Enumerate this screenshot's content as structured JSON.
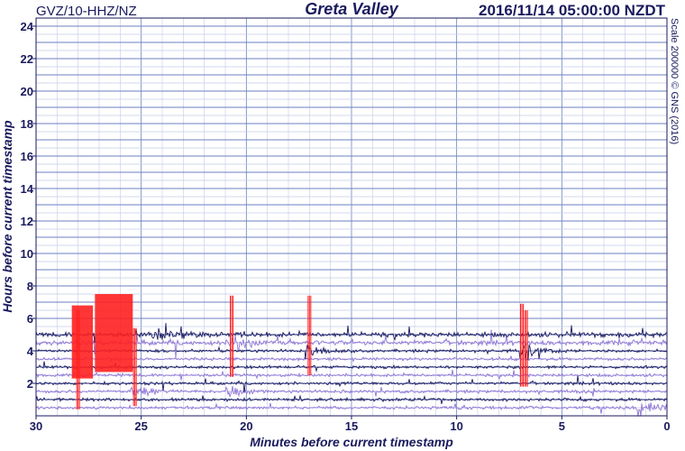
{
  "header": {
    "station": "GVZ/10-HHZ/NZ",
    "site": "Greta Valley",
    "timestamp": "2016/11/14 05:00:00 NZDT"
  },
  "side_note": "Scale 200000 © GNS (2016)",
  "chart_data": {
    "type": "seismic-drum",
    "xlabel": "Minutes before current timestamp",
    "ylabel": "Hours before current timestamp",
    "x_ticks": [
      "30",
      "25",
      "20",
      "15",
      "10",
      "5",
      "0"
    ],
    "x_tick_values": [
      30,
      25,
      20,
      15,
      10,
      5,
      0
    ],
    "y_ticks": [
      "2",
      "4",
      "6",
      "8",
      "10",
      "12",
      "14",
      "16",
      "18",
      "20",
      "22",
      "24"
    ],
    "y_tick_values": [
      2,
      4,
      6,
      8,
      10,
      12,
      14,
      16,
      18,
      20,
      22,
      24
    ],
    "xlim": [
      30,
      0
    ],
    "ylim": [
      0,
      24.5
    ],
    "trace_interval_hours": 0.5,
    "active_hours": 5,
    "trace_colors": [
      "#1a1a5e",
      "#8f74d6"
    ],
    "grid_major_color": "#6b7fc0",
    "grid_minor_color": "#c3cbe6",
    "clip_color": "#ff2020",
    "clip_blocks": [
      {
        "x_start": 27.2,
        "x_end": 25.4,
        "y_bottom": 2.7,
        "y_top": 7.5
      },
      {
        "x_start": 28.3,
        "x_end": 27.3,
        "y_bottom": 2.3,
        "y_top": 6.8
      }
    ],
    "spike_events": [
      {
        "x": 28.0,
        "y_bottom": 0.4,
        "y_top": 6.5
      },
      {
        "x": 25.3,
        "y_bottom": 0.6,
        "y_top": 5.4
      },
      {
        "x": 20.7,
        "y_bottom": 2.4,
        "y_top": 7.4
      },
      {
        "x": 17.0,
        "y_bottom": 2.5,
        "y_top": 7.4
      },
      {
        "x": 6.9,
        "y_bottom": 1.8,
        "y_top": 6.9
      },
      {
        "x": 6.7,
        "y_bottom": 1.8,
        "y_top": 6.5
      }
    ],
    "burst_events": [
      {
        "x": 24.5,
        "hour": 5.0,
        "strength": 1.0
      },
      {
        "x": 20.8,
        "hour": 4.5,
        "strength": 0.8
      },
      {
        "x": 17.2,
        "hour": 4.0,
        "strength": 0.6
      },
      {
        "x": 7.0,
        "hour": 4.0,
        "strength": 1.0
      },
      {
        "x": 21.0,
        "hour": 1.5,
        "strength": 0.6
      },
      {
        "x": 25.5,
        "hour": 1.5,
        "strength": 0.8
      },
      {
        "x": 1.5,
        "hour": 0.5,
        "strength": 0.9
      }
    ]
  }
}
